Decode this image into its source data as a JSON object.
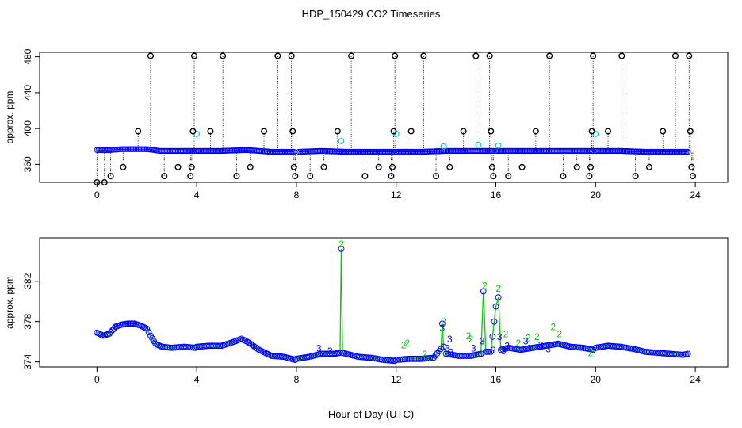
{
  "chart_data": {
    "title": "HDP_150429  CO2 Timeseries",
    "xlabel": "Hour of Day (UTC)",
    "colors": {
      "flag1": "#0000ff",
      "flag2": "#00cc00",
      "flag3": "#0000aa",
      "raw": "#000000",
      "filtered": "#00cccc"
    },
    "panels": [
      {
        "id": "top",
        "type": "scatter",
        "ylabel": "approx. ppm",
        "xlim": [
          -2.3,
          25.3
        ],
        "ylim": [
          340,
          485
        ],
        "xticks": [
          0,
          4,
          8,
          12,
          16,
          20,
          24
        ],
        "yticks": [
          360,
          400,
          440,
          480
        ],
        "baseline_segments": [
          {
            "x": [
              0.0,
              0.5,
              1.0,
              1.5,
              2.0,
              2.3,
              2.5,
              3.0,
              3.5,
              3.9
            ],
            "y": [
              376,
              376,
              377,
              377,
              377,
              376,
              375,
              375,
              375,
              375
            ]
          },
          {
            "x": [
              4.0,
              5.0,
              6.0,
              6.5,
              7.0,
              7.9
            ],
            "y": [
              375,
              375,
              376,
              375,
              374,
              374
            ]
          },
          {
            "x": [
              8.1,
              9.0,
              10.0,
              11.0,
              11.9
            ],
            "y": [
              374,
              375,
              374,
              374,
              374
            ]
          },
          {
            "x": [
              12.0,
              13.0,
              14.0,
              15.0,
              15.5,
              15.9
            ],
            "y": [
              374,
              374,
              375,
              375,
              375,
              375
            ]
          },
          {
            "x": [
              16.0,
              17.0,
              18.0,
              18.5,
              19.0,
              19.9
            ],
            "y": [
              375,
              375,
              375,
              375,
              375,
              375
            ]
          },
          {
            "x": [
              20.0,
              21.0,
              22.0,
              23.0,
              23.7
            ],
            "y": [
              375,
              375,
              374,
              374,
              374
            ]
          }
        ],
        "outliers": [
          {
            "x": 0.0,
            "y": 340
          },
          {
            "x": 0.3,
            "y": 340
          },
          {
            "x": 0.55,
            "y": 347
          },
          {
            "x": 1.05,
            "y": 357
          },
          {
            "x": 1.65,
            "y": 397
          },
          {
            "x": 2.15,
            "y": 481
          },
          {
            "x": 2.7,
            "y": 347
          },
          {
            "x": 3.25,
            "y": 357
          },
          {
            "x": 3.75,
            "y": 347
          },
          {
            "x": 3.8,
            "y": 357
          },
          {
            "x": 3.85,
            "y": 397
          },
          {
            "x": 3.9,
            "y": 481
          },
          {
            "x": 4.55,
            "y": 397
          },
          {
            "x": 5.05,
            "y": 481
          },
          {
            "x": 5.6,
            "y": 347
          },
          {
            "x": 6.15,
            "y": 357
          },
          {
            "x": 6.7,
            "y": 397
          },
          {
            "x": 7.25,
            "y": 481
          },
          {
            "x": 7.8,
            "y": 481
          },
          {
            "x": 7.85,
            "y": 397
          },
          {
            "x": 7.9,
            "y": 357
          },
          {
            "x": 7.95,
            "y": 347
          },
          {
            "x": 8.55,
            "y": 347
          },
          {
            "x": 9.1,
            "y": 357
          },
          {
            "x": 9.65,
            "y": 397
          },
          {
            "x": 10.2,
            "y": 481
          },
          {
            "x": 10.75,
            "y": 347
          },
          {
            "x": 11.3,
            "y": 357
          },
          {
            "x": 11.8,
            "y": 347
          },
          {
            "x": 11.85,
            "y": 357
          },
          {
            "x": 11.9,
            "y": 397
          },
          {
            "x": 11.95,
            "y": 481
          },
          {
            "x": 12.6,
            "y": 397
          },
          {
            "x": 13.1,
            "y": 481
          },
          {
            "x": 13.6,
            "y": 347
          },
          {
            "x": 14.15,
            "y": 357
          },
          {
            "x": 14.7,
            "y": 397
          },
          {
            "x": 15.2,
            "y": 481
          },
          {
            "x": 15.75,
            "y": 481
          },
          {
            "x": 15.8,
            "y": 397
          },
          {
            "x": 15.85,
            "y": 357
          },
          {
            "x": 15.9,
            "y": 347
          },
          {
            "x": 16.5,
            "y": 347
          },
          {
            "x": 17.05,
            "y": 357
          },
          {
            "x": 17.6,
            "y": 397
          },
          {
            "x": 18.15,
            "y": 481
          },
          {
            "x": 18.7,
            "y": 347
          },
          {
            "x": 19.25,
            "y": 357
          },
          {
            "x": 19.75,
            "y": 347
          },
          {
            "x": 19.8,
            "y": 357
          },
          {
            "x": 19.85,
            "y": 397
          },
          {
            "x": 19.9,
            "y": 481
          },
          {
            "x": 20.5,
            "y": 397
          },
          {
            "x": 21.05,
            "y": 481
          },
          {
            "x": 21.6,
            "y": 347
          },
          {
            "x": 22.15,
            "y": 357
          },
          {
            "x": 22.7,
            "y": 397
          },
          {
            "x": 23.2,
            "y": 481
          },
          {
            "x": 23.75,
            "y": 481
          },
          {
            "x": 23.8,
            "y": 397
          },
          {
            "x": 23.85,
            "y": 357
          },
          {
            "x": 23.9,
            "y": 347
          }
        ],
        "filtered_points": [
          {
            "x": 4.0,
            "y": 394
          },
          {
            "x": 9.8,
            "y": 386
          },
          {
            "x": 12.0,
            "y": 394
          },
          {
            "x": 13.9,
            "y": 380
          },
          {
            "x": 15.3,
            "y": 382
          },
          {
            "x": 16.1,
            "y": 381
          },
          {
            "x": 20.0,
            "y": 394
          }
        ]
      },
      {
        "id": "bottom",
        "type": "line",
        "ylabel": "approx. ppm",
        "xlim": [
          -2.3,
          25.3
        ],
        "ylim": [
          373.5,
          386.3
        ],
        "xticks": [
          0,
          4,
          8,
          12,
          16,
          20,
          24
        ],
        "yticks": [
          374,
          378,
          382
        ],
        "segments": [
          {
            "x": [
              0.0,
              0.25,
              0.5,
              0.75,
              1.0,
              1.25,
              1.5,
              1.75,
              2.0,
              2.15,
              2.35,
              2.6,
              3.0,
              3.5,
              3.95
            ],
            "y": [
              376.9,
              376.6,
              376.8,
              377.5,
              377.7,
              377.8,
              377.8,
              377.6,
              377.3,
              376.6,
              375.8,
              375.5,
              375.4,
              375.5,
              375.4
            ]
          },
          {
            "x": [
              4.0,
              4.5,
              5.0,
              5.5,
              5.8,
              6.1,
              6.5,
              7.0,
              7.5,
              7.95
            ],
            "y": [
              375.5,
              375.6,
              375.6,
              376.0,
              376.3,
              375.9,
              375.2,
              374.6,
              374.5,
              374.2
            ]
          },
          {
            "x": [
              8.0,
              8.5,
              9.0,
              9.5,
              9.75,
              9.8,
              9.85,
              10.0,
              10.5,
              11.0,
              11.5,
              11.95
            ],
            "y": [
              374.3,
              374.5,
              374.8,
              374.8,
              374.9,
              385.2,
              374.9,
              374.8,
              374.5,
              374.4,
              374.2,
              374.1
            ]
          },
          {
            "x": [
              12.0,
              12.5,
              13.0,
              13.5,
              13.8,
              13.85,
              13.9,
              14.0,
              14.5,
              15.0,
              15.4,
              15.5,
              15.6,
              15.8,
              16.0,
              16.1,
              16.2,
              16.5,
              17.0,
              17.5,
              18.0,
              18.5,
              19.0,
              19.5,
              19.9
            ],
            "y": [
              374.2,
              374.3,
              374.3,
              374.4,
              375.3,
              377.8,
              375.5,
              374.8,
              374.6,
              374.6,
              374.8,
              381.0,
              375.0,
              375.0,
              379.5,
              380.4,
              375.2,
              375.4,
              375.2,
              375.4,
              375.6,
              375.8,
              375.5,
              375.4,
              375.2
            ]
          },
          {
            "x": [
              20.0,
              20.5,
              21.0,
              21.5,
              22.0,
              22.5,
              23.0,
              23.5,
              23.7
            ],
            "y": [
              375.4,
              375.6,
              375.5,
              375.3,
              375.0,
              374.9,
              374.8,
              374.7,
              374.8
            ]
          }
        ],
        "flag2_labels": [
          {
            "x": 9.8,
            "y": 385.6,
            "label": "2"
          },
          {
            "x": 12.3,
            "y": 375.6,
            "label": "2"
          },
          {
            "x": 12.45,
            "y": 375.8,
            "label": "2"
          },
          {
            "x": 13.15,
            "y": 374.7,
            "label": "2"
          },
          {
            "x": 13.9,
            "y": 377.9,
            "label": "2"
          },
          {
            "x": 14.9,
            "y": 376.5,
            "label": "2"
          },
          {
            "x": 15.0,
            "y": 376.2,
            "label": "2"
          },
          {
            "x": 15.55,
            "y": 381.5,
            "label": "2"
          },
          {
            "x": 16.1,
            "y": 381.2,
            "label": "2"
          },
          {
            "x": 16.4,
            "y": 376.7,
            "label": "2"
          },
          {
            "x": 16.9,
            "y": 375.8,
            "label": "2"
          },
          {
            "x": 17.3,
            "y": 376.3,
            "label": "2"
          },
          {
            "x": 17.65,
            "y": 376.4,
            "label": "2"
          },
          {
            "x": 18.3,
            "y": 377.4,
            "label": "2"
          },
          {
            "x": 18.55,
            "y": 376.7,
            "label": "2"
          },
          {
            "x": 19.8,
            "y": 374.8,
            "label": "2"
          }
        ],
        "flag3_labels": [
          {
            "x": 8.9,
            "y": 375.3,
            "label": "3"
          },
          {
            "x": 9.35,
            "y": 375.0,
            "label": "3"
          },
          {
            "x": 13.85,
            "y": 377.3,
            "label": "3"
          },
          {
            "x": 14.15,
            "y": 376.2,
            "label": "3"
          },
          {
            "x": 14.05,
            "y": 375.3,
            "label": "3"
          },
          {
            "x": 15.1,
            "y": 375.3,
            "label": "3"
          },
          {
            "x": 15.9,
            "y": 375.1,
            "label": "3"
          },
          {
            "x": 16.15,
            "y": 376.4,
            "label": "3"
          },
          {
            "x": 16.45,
            "y": 375.5,
            "label": "3"
          },
          {
            "x": 17.2,
            "y": 376.0,
            "label": "3"
          },
          {
            "x": 17.35,
            "y": 375.3,
            "label": "3"
          },
          {
            "x": 17.8,
            "y": 375.6,
            "label": "3"
          },
          {
            "x": 18.1,
            "y": 375.2,
            "label": "3"
          },
          {
            "x": 16.3,
            "y": 375.0,
            "label": "3"
          },
          {
            "x": 14.2,
            "y": 374.9,
            "label": "3"
          },
          {
            "x": 15.45,
            "y": 376.0,
            "label": "3"
          }
        ]
      }
    ]
  }
}
